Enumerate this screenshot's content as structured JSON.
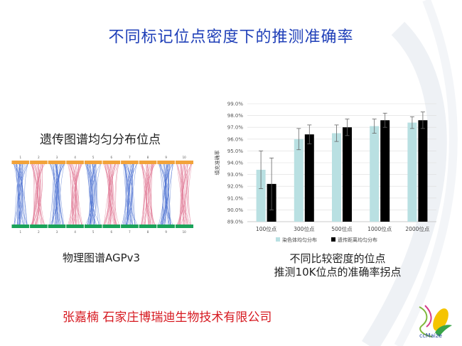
{
  "slide": {
    "title": "不同标记位点密度下的推测准确率",
    "left_caption_top": "遗传图谱均匀分布位点",
    "left_caption_bottom": "物理图谱AGPv3",
    "chart_caption_line1": "不同比较密度的位点",
    "chart_caption_line2": "推测10K位点的准确率拐点",
    "footer": "张嘉楠  石家庄博瑞迪生物技术有限公司",
    "logo_text": "ccMaize"
  },
  "genome_map": {
    "top_labels": [
      "1",
      "2",
      "3",
      "4",
      "5",
      "6",
      "7",
      "8",
      "9",
      "10"
    ],
    "bottom_labels": [
      "1",
      "2",
      "3",
      "4",
      "5",
      "6",
      "7",
      "8",
      "9",
      "10"
    ],
    "colors": {
      "top_bar": "#f2a33a",
      "bottom_bar": "#1aa35a",
      "blue": "#4a6fd0",
      "pink": "#e07a95"
    }
  },
  "chart_data": {
    "type": "bar",
    "ylabel": "填充准确率",
    "ylim": [
      89.0,
      99.0
    ],
    "yticks": [
      "89.0%",
      "90.0%",
      "91.0%",
      "92.0%",
      "93.0%",
      "94.0%",
      "95.0%",
      "96.0%",
      "97.0%",
      "98.0%",
      "99.0%"
    ],
    "categories": [
      "100位点",
      "300位点",
      "500位点",
      "1000位点",
      "2000位点"
    ],
    "series": [
      {
        "name": "染色体均匀分布",
        "color": "#b9e0e2",
        "values": [
          93.4,
          96.0,
          96.5,
          97.1,
          97.4
        ],
        "errors": [
          1.6,
          0.9,
          0.7,
          0.6,
          0.5
        ]
      },
      {
        "name": "遗传距离均匀分布",
        "color": "#000000",
        "values": [
          92.2,
          96.4,
          97.0,
          97.6,
          97.6
        ],
        "errors": [
          2.2,
          0.8,
          0.7,
          0.6,
          0.7
        ]
      }
    ],
    "legend_position": "bottom",
    "grid": true
  }
}
